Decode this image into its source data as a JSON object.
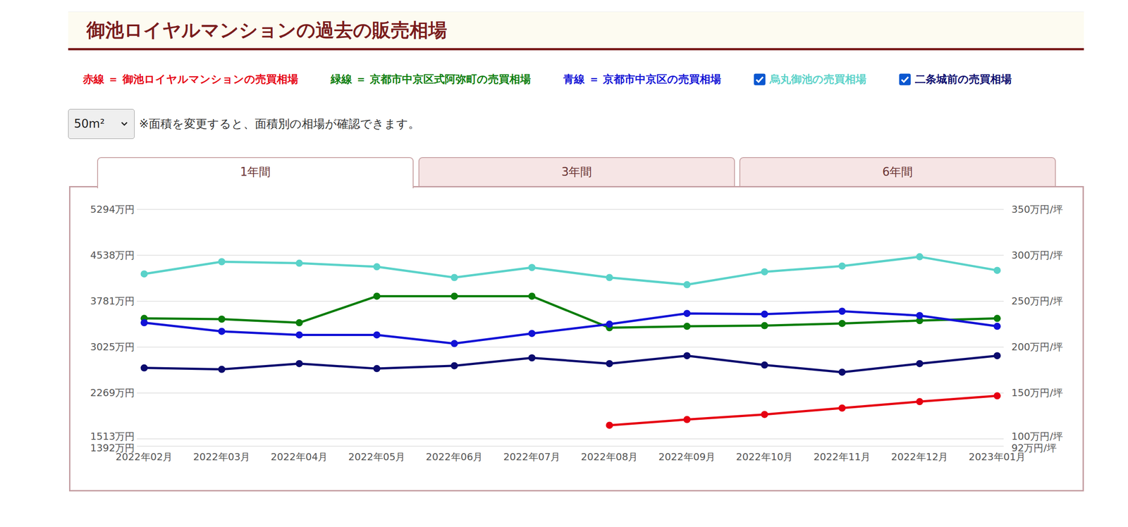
{
  "chart_data": {
    "type": "line",
    "title": "御池ロイヤルマンションの過去の販売相場",
    "x": [
      "2022年02月",
      "2022年03月",
      "2022年04月",
      "2022年05月",
      "2022年06月",
      "2022年07月",
      "2022年08月",
      "2022年09月",
      "2022年10月",
      "2022年11月",
      "2022年12月",
      "2023年01月"
    ],
    "series": [
      {
        "name": "赤線 ＝ 御池ロイヤルマンションの売買相場",
        "color": "#e60012",
        "values": [
          null,
          null,
          null,
          null,
          null,
          null,
          1737,
          1832,
          1915,
          2021,
          2127,
          2222
        ]
      },
      {
        "name": "緑線 ＝ 京都市中京区式阿弥町の売買相場",
        "color": "#0a7d0a",
        "values": [
          3498,
          3486,
          3427,
          3864,
          3864,
          3864,
          3344,
          3368,
          3379,
          3415,
          3462,
          3498
        ]
      },
      {
        "name": "青線 ＝ 京都市中京区の売買相場",
        "color": "#1212d6",
        "values": [
          3427,
          3285,
          3226,
          3226,
          3084,
          3250,
          3403,
          3580,
          3568,
          3616,
          3545,
          3368
        ]
      },
      {
        "name": "烏丸御池の売買相場",
        "color": "#5ad2c9",
        "values": [
          4231,
          4432,
          4408,
          4349,
          4172,
          4337,
          4172,
          4054,
          4266,
          4361,
          4514,
          4290
        ]
      },
      {
        "name": "二条城前の売買相場",
        "color": "#0b0b6e",
        "values": [
          2682,
          2659,
          2753,
          2671,
          2718,
          2848,
          2753,
          2883,
          2730,
          2612,
          2753,
          2883
        ]
      }
    ],
    "ylim": [
      1392,
      5294
    ],
    "yticks": [
      {
        "value": 1392,
        "label": "1392万円"
      },
      {
        "value": 1513,
        "label": "1513万円"
      },
      {
        "value": 2269,
        "label": "2269万円"
      },
      {
        "value": 3025,
        "label": "3025万円"
      },
      {
        "value": 3781,
        "label": "3781万円"
      },
      {
        "value": 4538,
        "label": "4538万円"
      },
      {
        "value": 5294,
        "label": "5294万円"
      }
    ],
    "y2lim": [
      92,
      350
    ],
    "y2ticks": [
      {
        "value": 92,
        "label": "92万円/坪"
      },
      {
        "value": 100,
        "label": "100万円/坪"
      },
      {
        "value": 150,
        "label": "150万円/坪"
      },
      {
        "value": 200,
        "label": "200万円/坪"
      },
      {
        "value": 250,
        "label": "250万円/坪"
      },
      {
        "value": 300,
        "label": "300万円/坪"
      },
      {
        "value": 350,
        "label": "350万円/坪"
      }
    ],
    "grid": true,
    "marker": "circle",
    "legend": "top"
  },
  "page": {
    "area_select": "50m²",
    "note": "※面積を変更すると、面積別の相場が確認できます。",
    "tabs": [
      "1年間",
      "3年間",
      "6年間"
    ]
  }
}
